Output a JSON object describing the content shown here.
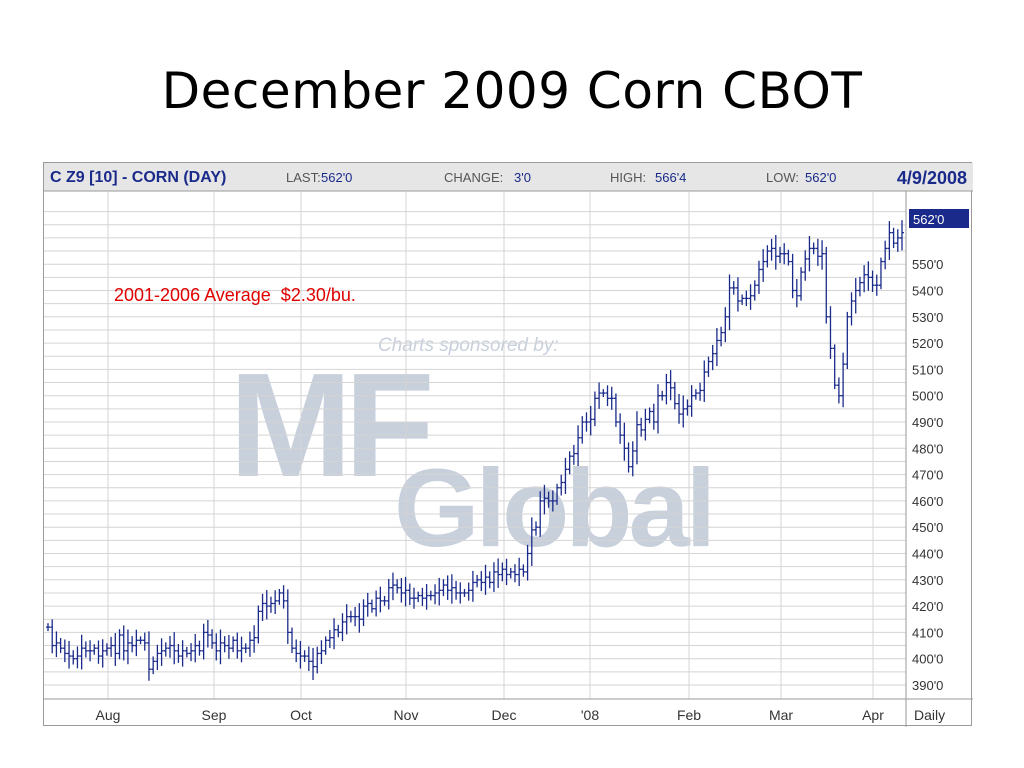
{
  "slide": {
    "title": "December 2009 Corn CBOT",
    "annotation": "2001-2006 Average  $2.30/bu."
  },
  "chart_header": {
    "symbol": "C Z9 [10] - CORN (DAY)",
    "last_label": "LAST:",
    "last_value": "562'0",
    "change_label": "CHANGE:",
    "change_value": "3'0",
    "high_label": "HIGH:",
    "high_value": "566'4",
    "low_label": "LOW:",
    "low_value": "562'0",
    "date": "4/9/2008"
  },
  "watermark": {
    "sponsor_text": "Charts sponsored by:",
    "logo_letters": "MF",
    "logo_word": "Global"
  },
  "colors": {
    "series": "#1a2a8a",
    "grid": "#d4d4d4",
    "header_bg": "#e6e6e6",
    "header_text": "#1a2a8a",
    "last_price_box": "#1a2a8a",
    "annotation": "#e00000",
    "watermark": "#c8d0dc"
  },
  "chart_data": {
    "type": "ohlc",
    "period": "Daily",
    "last_price_label": "562'0",
    "y_tick_labels": [
      "550'0",
      "540'0",
      "530'0",
      "520'0",
      "510'0",
      "500'0",
      "490'0",
      "480'0",
      "470'0",
      "460'0",
      "450'0",
      "440'0",
      "430'0",
      "420'0",
      "410'0",
      "400'0",
      "390'0"
    ],
    "x_tick_labels": [
      "Aug",
      "Sep",
      "Oct",
      "Nov",
      "Dec",
      "'08",
      "Feb",
      "Mar",
      "Apr"
    ],
    "ylim": [
      385,
      570
    ],
    "grid": true,
    "close": [
      412,
      405,
      406,
      404,
      402,
      401,
      400,
      401,
      404,
      403,
      403,
      404,
      401,
      403,
      404,
      405,
      402,
      409,
      403,
      406,
      405,
      407,
      407,
      406,
      396,
      399,
      402,
      403,
      404,
      405,
      403,
      401,
      403,
      402,
      403,
      405,
      403,
      410,
      409,
      406,
      403,
      406,
      405,
      404,
      407,
      403,
      404,
      404,
      407,
      408,
      418,
      421,
      420,
      421,
      422,
      425,
      422,
      410,
      404,
      402,
      401,
      401,
      399,
      397,
      402,
      403,
      407,
      408,
      411,
      410,
      414,
      416,
      416,
      416,
      415,
      420,
      421,
      419,
      423,
      422,
      422,
      427,
      428,
      427,
      425,
      426,
      423,
      423,
      424,
      423,
      424,
      424,
      425,
      426,
      428,
      426,
      427,
      425,
      425,
      425,
      426,
      429,
      430,
      429,
      431,
      429,
      433,
      432,
      434,
      432,
      433,
      432,
      434,
      433,
      440,
      449,
      450,
      460,
      461,
      460,
      460,
      465,
      467,
      472,
      477,
      478,
      484,
      490,
      490,
      491,
      499,
      501,
      501,
      499,
      499,
      490,
      485,
      480,
      473,
      479,
      489,
      487,
      491,
      494,
      490,
      500,
      500,
      505,
      503,
      497,
      493,
      495,
      496,
      500,
      501,
      502,
      509,
      513,
      516,
      521,
      524,
      530,
      541,
      541,
      536,
      537,
      537,
      538,
      542,
      548,
      551,
      555,
      556,
      553,
      554,
      554,
      551,
      540,
      538,
      547,
      552,
      556,
      556,
      553,
      554,
      530,
      518,
      504,
      500,
      512,
      530,
      536,
      540,
      543,
      546,
      545,
      542,
      542,
      551,
      556,
      562,
      558,
      560,
      562
    ]
  },
  "axis_note": {
    "period_label": "Daily"
  }
}
